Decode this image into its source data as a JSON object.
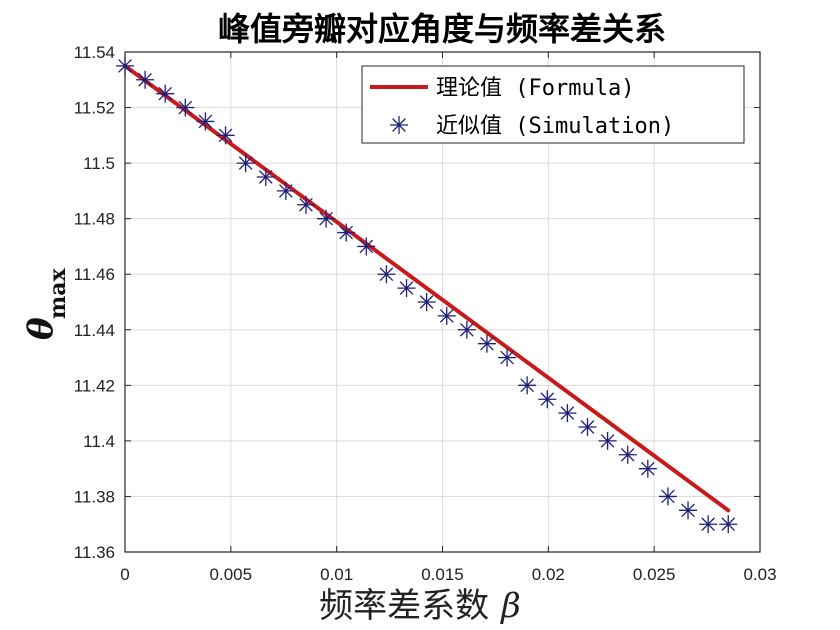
{
  "chart_data": {
    "type": "line",
    "title": "峰值旁瓣对应角度与频率差关系",
    "xlabel": "频率差系数",
    "xlabel_symbol": "β",
    "ylabel_main": "θ",
    "ylabel_sub": "max",
    "xlim": [
      0,
      0.03
    ],
    "ylim": [
      11.36,
      11.54
    ],
    "xticks": [
      0,
      0.005,
      0.01,
      0.015,
      0.02,
      0.025,
      0.03
    ],
    "xtick_labels": [
      "0",
      "0.005",
      "0.01",
      "0.015",
      "0.02",
      "0.025",
      "0.03"
    ],
    "yticks": [
      11.36,
      11.38,
      11.4,
      11.42,
      11.44,
      11.46,
      11.48,
      11.5,
      11.52,
      11.54
    ],
    "ytick_labels": [
      "11.36",
      "11.38",
      "11.4",
      "11.42",
      "11.44",
      "11.46",
      "11.48",
      "11.5",
      "11.52",
      "11.54"
    ],
    "grid": true,
    "legend_position": "top-right",
    "series": [
      {
        "name": "理论值 (Formula)",
        "style": "line",
        "color": "#c81a1a",
        "x": [
          0,
          0.0285
        ],
        "y": [
          11.535,
          11.375
        ]
      },
      {
        "name": "近似值 (Simulation)",
        "style": "asterisk",
        "color": "#1f1f7a",
        "x": [
          0,
          0.00095,
          0.0019,
          0.00285,
          0.0038,
          0.00475,
          0.0057,
          0.00665,
          0.0076,
          0.00855,
          0.0095,
          0.01045,
          0.0114,
          0.01235,
          0.0133,
          0.01425,
          0.0152,
          0.01615,
          0.0171,
          0.01805,
          0.019,
          0.01995,
          0.0209,
          0.02185,
          0.0228,
          0.02375,
          0.0247,
          0.02565,
          0.0266,
          0.02755,
          0.0285
        ],
        "y": [
          11.535,
          11.53,
          11.525,
          11.52,
          11.515,
          11.51,
          11.5,
          11.495,
          11.49,
          11.485,
          11.48,
          11.475,
          11.47,
          11.46,
          11.455,
          11.45,
          11.445,
          11.44,
          11.435,
          11.43,
          11.42,
          11.415,
          11.41,
          11.405,
          11.4,
          11.395,
          11.39,
          11.38,
          11.375,
          11.37,
          11.37
        ]
      }
    ]
  }
}
